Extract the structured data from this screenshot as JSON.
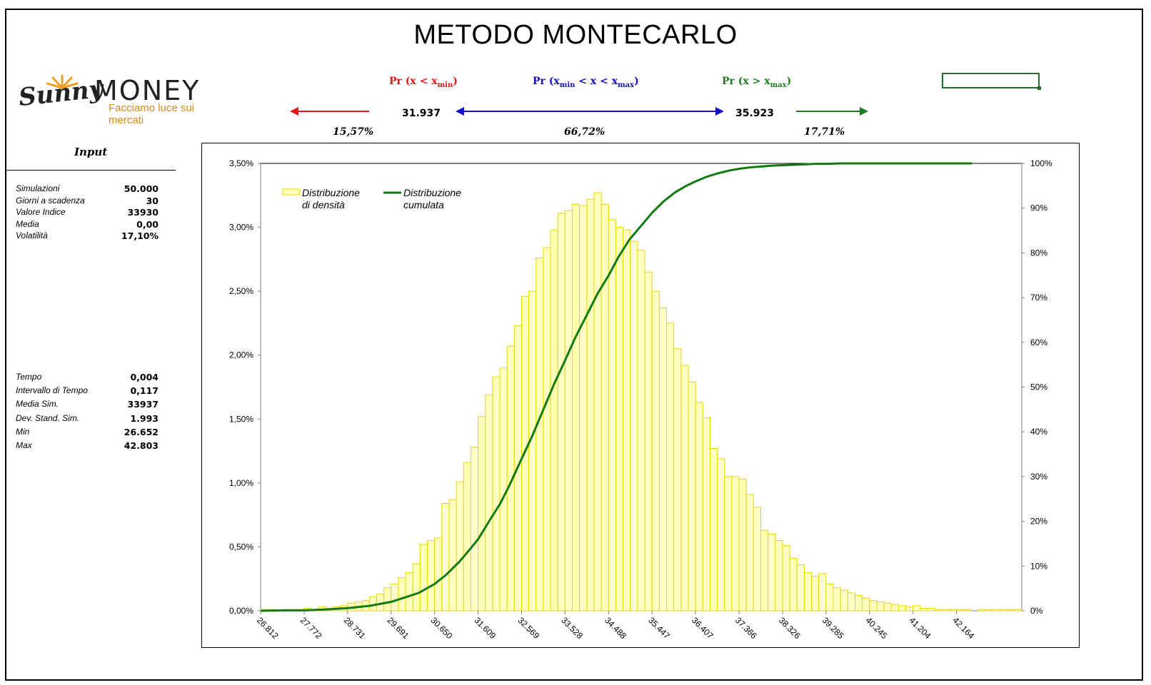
{
  "title": "METODO MONTECARLO",
  "logo": {
    "brand_sunny": "Sunny",
    "brand_money": "MONEY",
    "tagline": "Facciamo luce sui mercati"
  },
  "header": {
    "left_label_main": "Pr (x < x",
    "left_label_sub": "min",
    "left_label_end": ")",
    "mid_label_a": "Pr (x",
    "mid_label_sub1": "min",
    "mid_label_b": " < x < x",
    "mid_label_sub2": "max",
    "mid_label_end": ")",
    "right_label_main": "Pr (x > x",
    "right_label_sub": "max",
    "right_label_end": ")",
    "xmin_value": "31.937",
    "xmax_value": "35.923",
    "pct_left": "15,57%",
    "pct_mid": "66,72%",
    "pct_right": "17,71%",
    "colors": {
      "left": "#e8141c",
      "mid": "#1410c8",
      "right": "#1e7d1e"
    }
  },
  "panel": {
    "title": "Input",
    "params": [
      {
        "label": "Simulazioni",
        "value": "50.000"
      },
      {
        "label": "Giorni a scadenza",
        "value": "30"
      },
      {
        "label": "Valore Indice",
        "value": "33930"
      },
      {
        "label": "Media",
        "value": "0,00"
      },
      {
        "label": "Volatilità",
        "value": "17,10%"
      }
    ],
    "results": [
      {
        "label": "Tempo",
        "value": "0,004"
      },
      {
        "label": "Intervallo di Tempo",
        "value": "0,117"
      },
      {
        "label": "Media Sim.",
        "value": "33937"
      },
      {
        "label": "Dev. Stand. Sim.",
        "value": "1.993"
      },
      {
        "label": "Min",
        "value": "26.652"
      },
      {
        "label": "Max",
        "value": "42.803"
      }
    ]
  },
  "chart_data": {
    "type": "bar",
    "title": "",
    "xlabel": "",
    "ylabel": "",
    "ylim": [
      0,
      0.035
    ],
    "y2lim": [
      0,
      1
    ],
    "y_ticks": [
      "0,00%",
      "0,50%",
      "1,00%",
      "1,50%",
      "2,00%",
      "2,50%",
      "3,00%",
      "3,50%"
    ],
    "y2_ticks": [
      "0%",
      "10%",
      "20%",
      "30%",
      "40%",
      "50%",
      "60%",
      "70%",
      "80%",
      "90%",
      "100%"
    ],
    "x_tick_labels": [
      "26.812",
      "27.772",
      "28.731",
      "29.691",
      "30.650",
      "31.609",
      "32.569",
      "33.528",
      "34.488",
      "35.447",
      "36.407",
      "37.366",
      "38.326",
      "39.285",
      "40.245",
      "41.204",
      "42.164"
    ],
    "bin_start": 26.812,
    "bin_width": 0.1599,
    "series": [
      {
        "name": "Distribuzione di densità",
        "type": "bar",
        "color": "#ffffc0",
        "stroke": "#e6d800",
        "values": [
          0.0001,
          0.0001,
          0,
          0.0001,
          0.0001,
          0.0001,
          0.0002,
          0.0001,
          0.0003,
          0.0002,
          0.0003,
          0.0004,
          0.0006,
          0.0007,
          0.0008,
          0.0011,
          0.0013,
          0.0018,
          0.0021,
          0.0026,
          0.003,
          0.0037,
          0.0052,
          0.0055,
          0.0057,
          0.0084,
          0.0087,
          0.0101,
          0.0116,
          0.0128,
          0.0152,
          0.0169,
          0.0183,
          0.019,
          0.0207,
          0.0223,
          0.0246,
          0.025,
          0.0276,
          0.0284,
          0.0298,
          0.0311,
          0.0313,
          0.0318,
          0.0317,
          0.0322,
          0.0327,
          0.0318,
          0.0306,
          0.03,
          0.0298,
          0.0289,
          0.0282,
          0.0265,
          0.025,
          0.0237,
          0.0225,
          0.0205,
          0.0192,
          0.0179,
          0.0163,
          0.0151,
          0.0127,
          0.0119,
          0.0105,
          0.0105,
          0.0103,
          0.0091,
          0.0081,
          0.0063,
          0.006,
          0.0055,
          0.0051,
          0.0041,
          0.0036,
          0.003,
          0.0027,
          0.0029,
          0.0021,
          0.0018,
          0.0016,
          0.0014,
          0.0012,
          0.001,
          0.0008,
          0.0007,
          0.0006,
          0.0005,
          0.0004,
          0.0003,
          0.0004,
          0.0002,
          0.0002,
          0.0001,
          0.0001,
          0.0001,
          0.0001,
          0.0001,
          0,
          0.0001,
          0.0001,
          0.0001,
          0.0001,
          0.0001,
          0.0001
        ]
      },
      {
        "name": "Distribuzione cumulata",
        "type": "line",
        "axis": "right",
        "color": "#117a11",
        "x": [
          26.812,
          27.3,
          27.77,
          28.25,
          28.73,
          29.21,
          29.69,
          30.0,
          30.3,
          30.65,
          30.9,
          31.2,
          31.45,
          31.61,
          31.85,
          32.1,
          32.3,
          32.57,
          32.8,
          33.05,
          33.3,
          33.53,
          33.75,
          34.0,
          34.25,
          34.49,
          34.7,
          34.95,
          35.2,
          35.45,
          35.7,
          35.95,
          36.2,
          36.41,
          36.65,
          36.9,
          37.15,
          37.37,
          37.6,
          37.85,
          38.1,
          38.33,
          38.6,
          38.85,
          39.05,
          39.29,
          39.6,
          39.85,
          40.05,
          40.25,
          41.2,
          42.16,
          42.5
        ],
        "values": [
          0,
          0.001,
          0.001,
          0.003,
          0.006,
          0.011,
          0.02,
          0.03,
          0.04,
          0.06,
          0.08,
          0.11,
          0.14,
          0.16,
          0.2,
          0.24,
          0.28,
          0.34,
          0.39,
          0.45,
          0.51,
          0.56,
          0.61,
          0.66,
          0.71,
          0.75,
          0.79,
          0.83,
          0.86,
          0.89,
          0.915,
          0.935,
          0.95,
          0.96,
          0.97,
          0.978,
          0.984,
          0.988,
          0.991,
          0.993,
          0.995,
          0.996,
          0.997,
          0.998,
          0.999,
          0.999,
          1,
          1,
          1,
          1,
          1,
          1,
          1
        ]
      }
    ],
    "legend": [
      "Distribuzione di densità",
      "Distribuzione cumulata"
    ],
    "legend_position": "top-left",
    "grid": false
  }
}
